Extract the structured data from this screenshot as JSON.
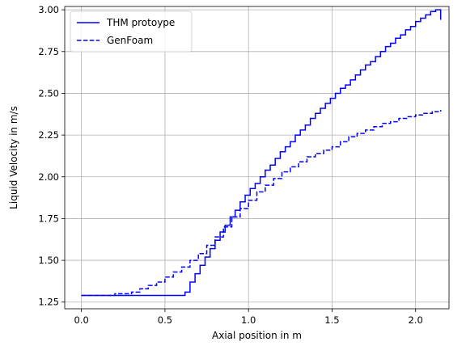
{
  "chart_data": {
    "type": "line",
    "xlabel": "Axial position in m",
    "ylabel": "Liquid Velocity in m/s",
    "xlim": [
      -0.1,
      2.2
    ],
    "ylim": [
      1.21,
      3.02
    ],
    "xticks": [
      0.0,
      0.5,
      1.0,
      1.5,
      2.0
    ],
    "xtick_labels": [
      "0.0",
      "0.5",
      "1.0",
      "1.5",
      "2.0"
    ],
    "yticks": [
      1.25,
      1.5,
      1.75,
      2.0,
      2.25,
      2.5,
      2.75,
      3.0
    ],
    "ytick_labels": [
      "1.25",
      "1.50",
      "1.75",
      "2.00",
      "2.25",
      "2.50",
      "2.75",
      "3.00"
    ],
    "grid": true,
    "legend_position": "top-left",
    "series": [
      {
        "name": "THM protoype",
        "color": "#0000ff",
        "style": "solid",
        "drawstyle": "steps",
        "x": [
          0.0,
          0.6,
          0.62,
          0.65,
          0.68,
          0.71,
          0.74,
          0.77,
          0.8,
          0.83,
          0.86,
          0.89,
          0.92,
          0.95,
          0.98,
          1.01,
          1.04,
          1.07,
          1.1,
          1.13,
          1.16,
          1.19,
          1.22,
          1.25,
          1.28,
          1.31,
          1.34,
          1.37,
          1.4,
          1.43,
          1.46,
          1.49,
          1.52,
          1.55,
          1.58,
          1.61,
          1.64,
          1.67,
          1.7,
          1.73,
          1.76,
          1.79,
          1.82,
          1.85,
          1.88,
          1.91,
          1.94,
          1.97,
          2.0,
          2.03,
          2.06,
          2.09,
          2.12,
          2.15
        ],
        "y": [
          1.29,
          1.29,
          1.31,
          1.37,
          1.42,
          1.47,
          1.52,
          1.57,
          1.62,
          1.67,
          1.71,
          1.76,
          1.8,
          1.85,
          1.89,
          1.93,
          1.96,
          2.0,
          2.04,
          2.07,
          2.11,
          2.15,
          2.18,
          2.21,
          2.25,
          2.28,
          2.31,
          2.35,
          2.38,
          2.41,
          2.44,
          2.47,
          2.5,
          2.53,
          2.55,
          2.58,
          2.61,
          2.64,
          2.67,
          2.69,
          2.72,
          2.75,
          2.78,
          2.8,
          2.83,
          2.85,
          2.88,
          2.9,
          2.93,
          2.95,
          2.97,
          2.99,
          3.0,
          2.94
        ]
      },
      {
        "name": "GenFoam",
        "color": "#0000ff",
        "style": "dashed",
        "drawstyle": "steps",
        "x": [
          0.0,
          0.1,
          0.2,
          0.3,
          0.35,
          0.4,
          0.45,
          0.5,
          0.55,
          0.6,
          0.65,
          0.7,
          0.75,
          0.8,
          0.85,
          0.9,
          0.95,
          1.0,
          1.05,
          1.1,
          1.15,
          1.2,
          1.25,
          1.3,
          1.35,
          1.4,
          1.45,
          1.5,
          1.55,
          1.6,
          1.65,
          1.7,
          1.75,
          1.8,
          1.85,
          1.9,
          1.95,
          2.0,
          2.05,
          2.1,
          2.15
        ],
        "y": [
          1.29,
          1.29,
          1.3,
          1.31,
          1.33,
          1.35,
          1.37,
          1.4,
          1.43,
          1.46,
          1.5,
          1.54,
          1.59,
          1.64,
          1.7,
          1.76,
          1.81,
          1.86,
          1.91,
          1.95,
          1.99,
          2.03,
          2.06,
          2.09,
          2.12,
          2.14,
          2.16,
          2.18,
          2.21,
          2.24,
          2.26,
          2.28,
          2.3,
          2.32,
          2.33,
          2.35,
          2.36,
          2.37,
          2.38,
          2.39,
          2.4
        ]
      }
    ]
  }
}
